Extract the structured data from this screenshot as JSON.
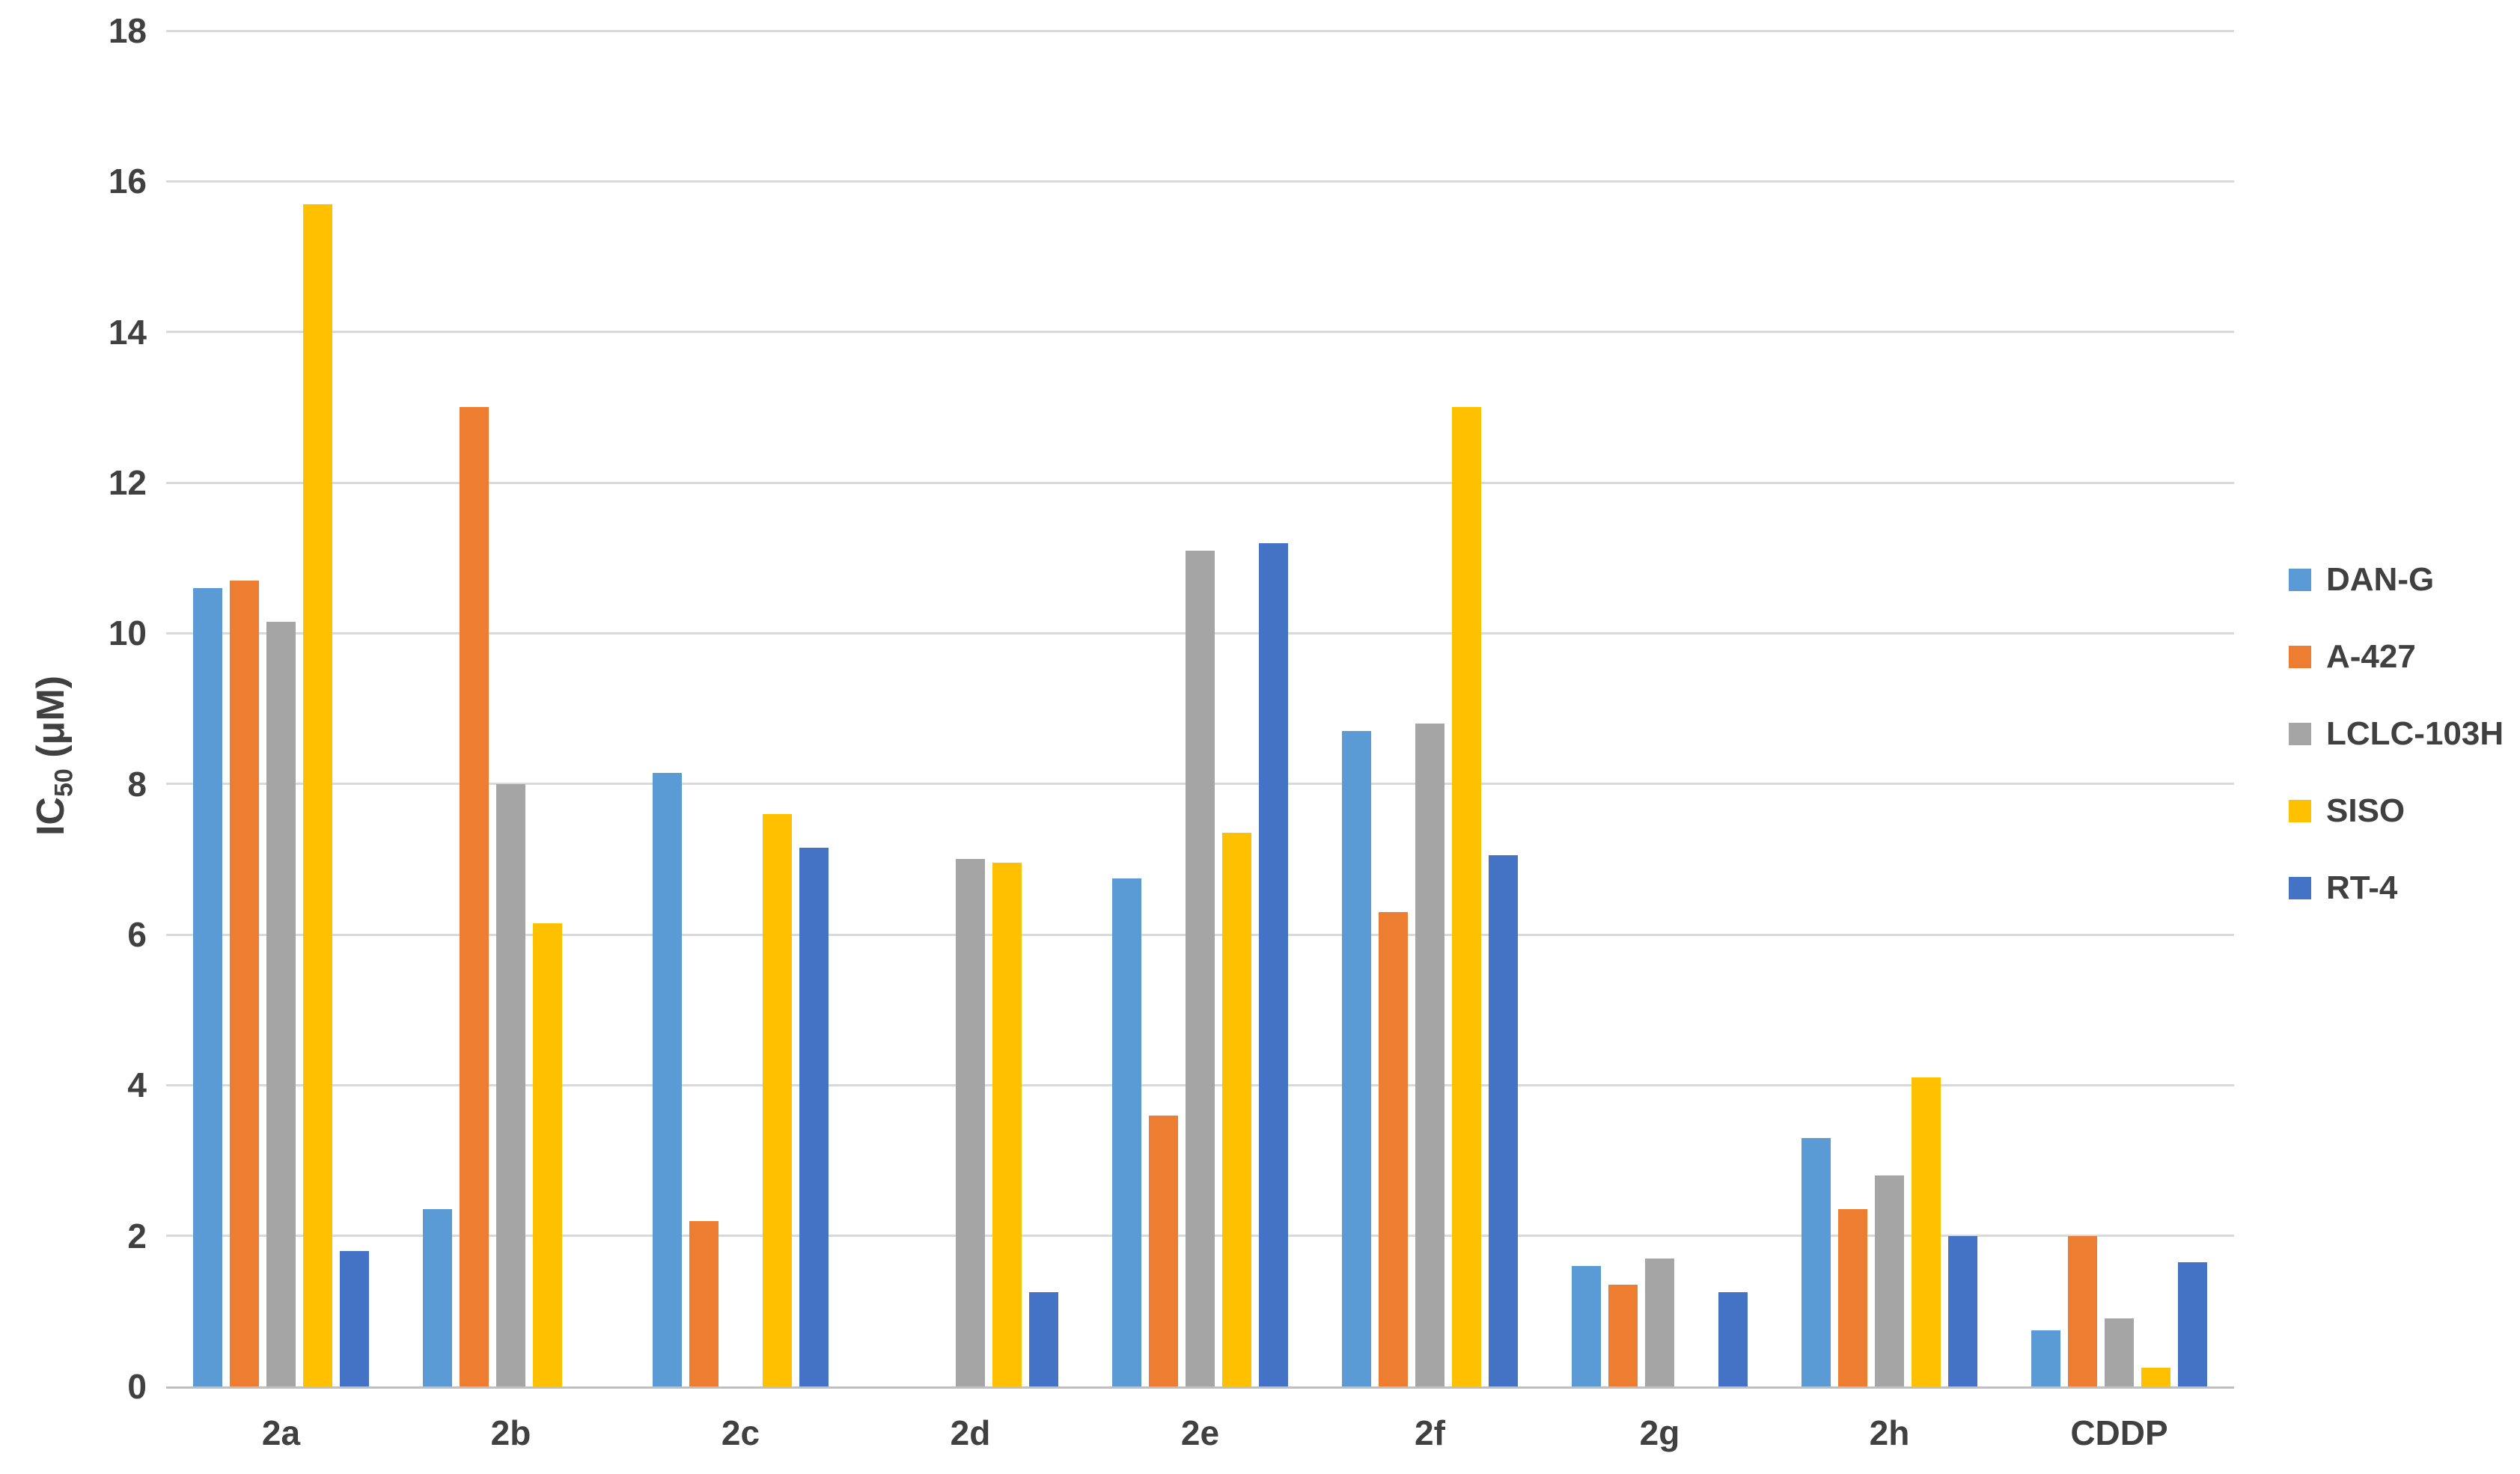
{
  "chart_data": {
    "type": "bar",
    "title": "",
    "ylabel": {
      "prefix": "IC",
      "sub": "50",
      "suffix": " (μM)"
    },
    "categories": [
      "2a",
      "2b",
      "2c",
      "2d",
      "2e",
      "2f",
      "2g",
      "2h",
      "CDDP"
    ],
    "series": [
      {
        "name": "DAN-G",
        "color": "#5B9BD5",
        "values": [
          10.6,
          2.35,
          8.15,
          0,
          6.75,
          8.7,
          1.6,
          3.3,
          0.75
        ]
      },
      {
        "name": "A-427",
        "color": "#ED7D31",
        "values": [
          10.7,
          13.0,
          2.2,
          0,
          3.6,
          6.3,
          1.35,
          2.35,
          2.0
        ]
      },
      {
        "name": "LCLC-103H",
        "color": "#A5A5A5",
        "values": [
          10.15,
          8.0,
          0,
          7.0,
          11.1,
          8.8,
          1.7,
          2.8,
          0.9
        ]
      },
      {
        "name": "SISO",
        "color": "#FFC000",
        "values": [
          15.7,
          6.15,
          7.6,
          6.95,
          7.35,
          13.0,
          0,
          4.1,
          0.25
        ]
      },
      {
        "name": "RT-4",
        "color": "#4472C4",
        "values": [
          1.8,
          0,
          7.15,
          1.25,
          11.2,
          7.05,
          1.25,
          2.0,
          1.65
        ]
      }
    ],
    "ylim": [
      0,
      18
    ],
    "y_ticks": [
      0,
      2,
      4,
      6,
      8,
      10,
      12,
      14,
      16,
      18
    ],
    "grid": true,
    "legend_position": "right",
    "colors": {
      "axis_text": "#404040",
      "gridline": "#D9D9D9",
      "axis_line": "#BFBFBF",
      "background": "#FFFFFF"
    }
  }
}
